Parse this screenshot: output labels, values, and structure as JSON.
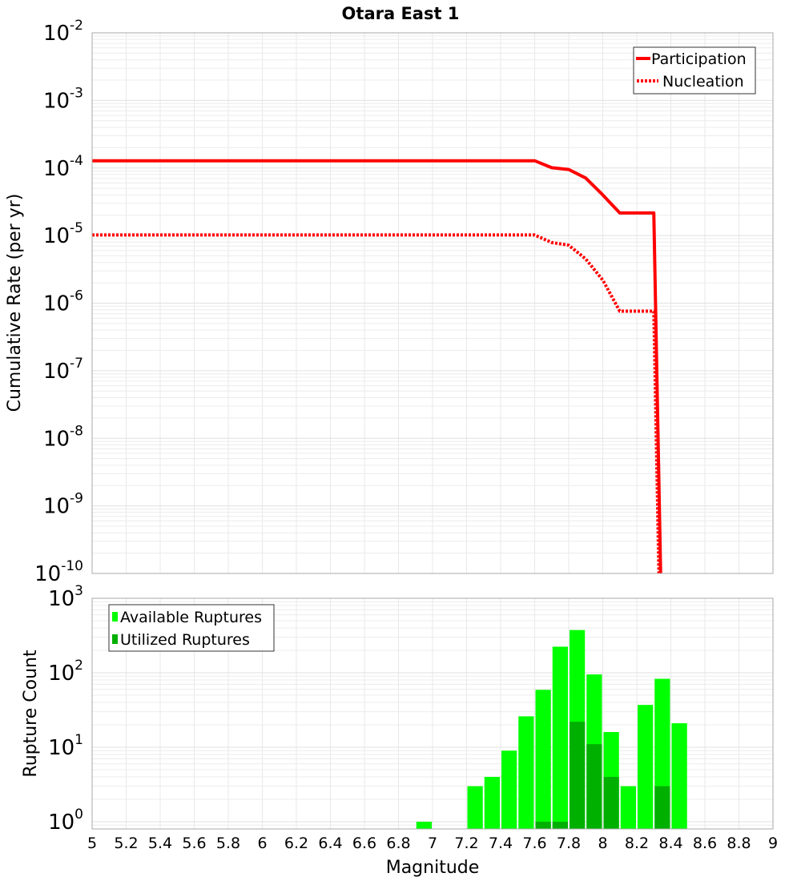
{
  "chart_data": [
    {
      "type": "line",
      "title": "Otara East 1",
      "xlabel": "",
      "ylabel": "Cumulative Rate (per yr)",
      "xlim": [
        5,
        9
      ],
      "ylim": [
        1e-10,
        0.01
      ],
      "yscale": "log",
      "grid": true,
      "legend_position": "top-right",
      "y_tick_exponents": [
        -2,
        -3,
        -4,
        -5,
        -6,
        -7,
        -8,
        -9,
        -10
      ],
      "series": [
        {
          "name": "Participation",
          "style": "solid",
          "color": "#ff0000",
          "x": [
            5.0,
            7.6,
            7.7,
            7.8,
            7.9,
            8.0,
            8.1,
            8.3,
            8.34
          ],
          "y": [
            0.000128,
            0.000128,
            0.000101,
            9.5e-05,
            7.1e-05,
            4e-05,
            2.16e-05,
            2.16e-05,
            1e-10
          ]
        },
        {
          "name": "Nucleation",
          "style": "dotted",
          "color": "#ff0000",
          "x": [
            5.0,
            7.6,
            7.7,
            7.8,
            7.9,
            8.0,
            8.1,
            8.3,
            8.33
          ],
          "y": [
            1.02e-05,
            1.02e-05,
            7.9e-06,
            7.2e-06,
            4.5e-06,
            2.2e-06,
            7.6e-07,
            7.6e-07,
            1e-10
          ]
        }
      ]
    },
    {
      "type": "bar",
      "xlabel": "Magnitude",
      "ylabel": "Rupture Count",
      "xlim": [
        5,
        9
      ],
      "ylim": [
        0.8,
        1000
      ],
      "yscale": "log",
      "grid": true,
      "legend_position": "top-left",
      "bin_width": 0.1,
      "y_tick_exponents": [
        3,
        2,
        1,
        0
      ],
      "x_ticks": [
        "5",
        "5.2",
        "5.4",
        "5.6",
        "5.8",
        "6",
        "6.2",
        "6.4",
        "6.6",
        "6.8",
        "7",
        "7.2",
        "7.4",
        "7.6",
        "7.8",
        "8",
        "8.2",
        "8.4",
        "8.6",
        "8.8",
        "9"
      ],
      "categories": [
        6.95,
        7.25,
        7.35,
        7.45,
        7.55,
        7.65,
        7.75,
        7.85,
        7.95,
        8.05,
        8.15,
        8.25,
        8.35,
        8.45
      ],
      "series": [
        {
          "name": "Available Ruptures",
          "color": "#00ff00",
          "values": [
            1,
            3,
            4,
            9,
            26,
            59,
            224,
            375,
            95,
            16,
            3,
            37,
            83,
            21
          ]
        },
        {
          "name": "Utilized Ruptures",
          "color": "#00b000",
          "values": [
            0,
            0,
            0,
            0,
            0,
            1,
            1,
            22,
            11,
            4,
            0,
            0,
            3,
            0
          ]
        }
      ]
    }
  ]
}
